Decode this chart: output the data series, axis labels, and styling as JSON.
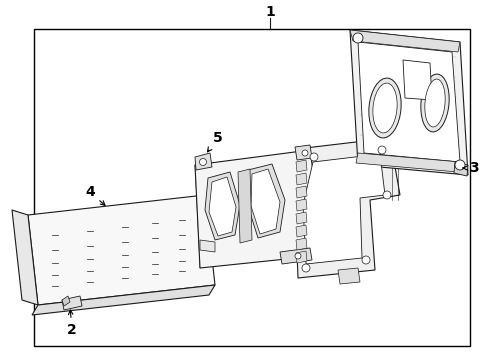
{
  "bg_color": "#ffffff",
  "line_color": "#1a1a1a",
  "label_color": "#000000",
  "border_color": "#000000",
  "fig_width": 4.9,
  "fig_height": 3.6,
  "dpi": 100,
  "label_fontsize": 10,
  "border": [
    0.07,
    0.04,
    0.96,
    0.92
  ]
}
